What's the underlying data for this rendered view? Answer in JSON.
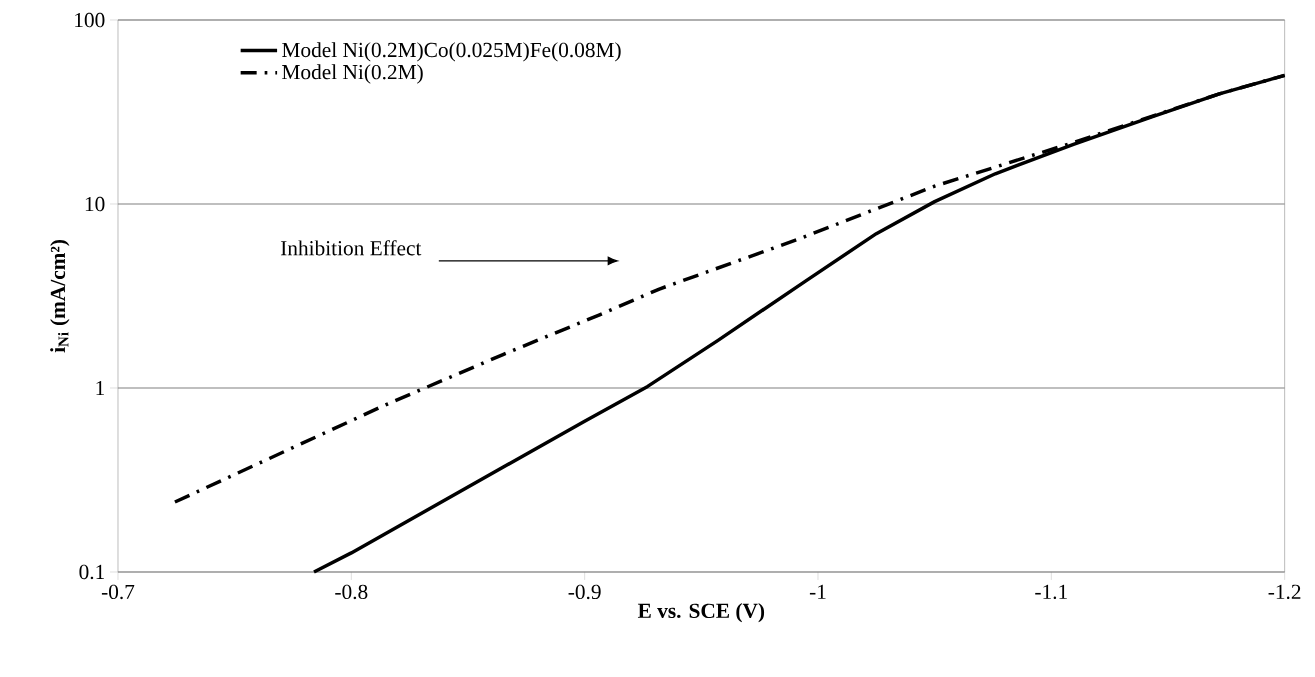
{
  "chart_data": {
    "type": "line",
    "xlabel": "E vs. SCE (V)",
    "ylabel": "i$_{Ni}$  (mA/cm²)",
    "xlim": [
      -0.7,
      -1.2
    ],
    "xticks": [
      -0.7,
      -0.8,
      -0.9,
      -1,
      -1.1,
      -1.2
    ],
    "ylim": [
      0.1,
      100
    ],
    "yticks": [
      0.1,
      1,
      10,
      100
    ],
    "log": "y",
    "grid": "y",
    "legend": "top left",
    "marker": "none",
    "annotations": [
      "Inhibition Effect"
    ],
    "series": [
      {
        "name": "Model Ni(0.2M)Co(0.025M)Fe(0.08M)",
        "color": "#000000",
        "line_style": "solid",
        "x": [
          -0.784,
          -0.8,
          -0.9,
          -0.927,
          -0.957,
          -0.9945,
          -1.025,
          -1.05,
          -1.076,
          -1.1095,
          -1.1437,
          -1.172,
          -1.2
        ],
        "values": [
          0.1,
          0.127,
          0.66,
          1.02,
          1.81,
          3.8,
          6.9,
          10.3,
          14.6,
          21.1,
          29.9,
          39.7,
          50
        ]
      },
      {
        "name": "Model Ni(0.2M)",
        "color": "#000000",
        "line_style": "dashdot",
        "x": [
          -0.7244,
          -0.8147,
          -0.865,
          -0.9064,
          -0.932,
          -0.991,
          -1.05,
          -1.1095,
          -1.172,
          -1.2
        ],
        "values": [
          0.24,
          0.81,
          1.52,
          2.5,
          3.45,
          6.4,
          12.5,
          21.6,
          39.7,
          50
        ]
      }
    ]
  }
}
